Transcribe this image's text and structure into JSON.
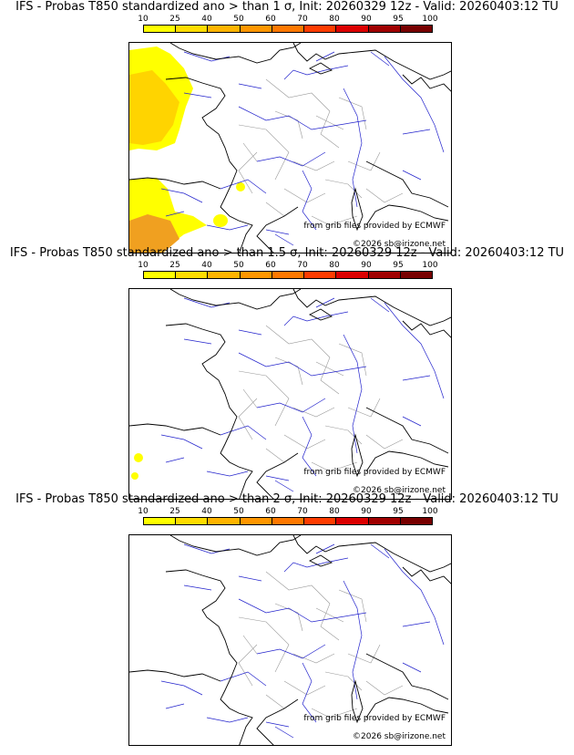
{
  "colorbar": {
    "labels": [
      "10",
      "25",
      "40",
      "50",
      "60",
      "70",
      "80",
      "90",
      "95",
      "100"
    ],
    "colors": [
      "#ffff00",
      "#ffdc00",
      "#ffb400",
      "#ff9600",
      "#ff7800",
      "#ff3c00",
      "#dc0000",
      "#a00000",
      "#780000"
    ]
  },
  "panels": [
    {
      "title": "IFS - Probas T850  standardized ano > than 1 σ, Init: 20260329 12z - Valid: 20260403:12 TU",
      "probability_level": "high"
    },
    {
      "title": "IFS - Probas T850  standardized ano > than 1.5 σ, Init: 20260329 12z - Valid: 20260403:12 TU",
      "probability_level": "trace"
    },
    {
      "title": "IFS - Probas T850  standardized ano > than 2 σ, Init: 20260329 12z - Valid: 20260403:12 TU",
      "probability_level": "none"
    }
  ],
  "credits": {
    "source": "from grib files provided by ECMWF",
    "copyright": "©2026 sb@irizone.net"
  },
  "map_colors": {
    "coast": "#000000",
    "rivers": "#2222cc",
    "borders": "#999999",
    "prob_low": "#ffff00",
    "prob_mid": "#ffd400",
    "prob_high": "#f0a020"
  }
}
